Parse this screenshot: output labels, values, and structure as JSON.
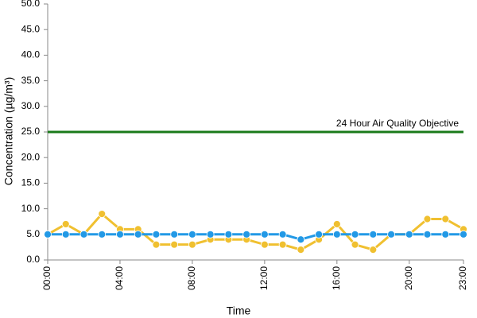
{
  "chart_data": {
    "type": "line",
    "xlabel": "Time",
    "ylabel": "Concentration (µg/m³)",
    "categories": [
      "00:00",
      null,
      null,
      null,
      "04:00",
      null,
      null,
      null,
      "08:00",
      null,
      null,
      null,
      "12:00",
      null,
      null,
      null,
      "16:00",
      null,
      null,
      null,
      "20:00",
      null,
      null,
      "23:00"
    ],
    "series": [
      {
        "color": "#f0c030",
        "values": [
          5,
          7,
          5,
          9,
          6,
          6,
          3,
          3,
          3,
          4,
          4,
          4,
          3,
          3,
          2,
          4,
          7,
          3,
          2,
          5,
          5,
          8,
          8,
          6
        ]
      },
      {
        "color": "#2299e6",
        "values": [
          5,
          5,
          5,
          5,
          5,
          5,
          5,
          5,
          5,
          5,
          5,
          5,
          5,
          5,
          4,
          5,
          5,
          5,
          5,
          5,
          5,
          5,
          5,
          5
        ]
      }
    ],
    "threshold": {
      "value": 25,
      "label": "24 Hour Air Quality Objective",
      "color": "#1a7a1a"
    },
    "ylim": [
      0,
      50
    ],
    "yticks": [
      {
        "value": 0,
        "label": "0.0"
      },
      {
        "value": 5,
        "label": "5.0"
      },
      {
        "value": 10,
        "label": "10.0"
      },
      {
        "value": 15,
        "label": "15.0"
      },
      {
        "value": 20,
        "label": "20.0"
      },
      {
        "value": 25,
        "label": "25.0"
      },
      {
        "value": 30,
        "label": "30.0"
      },
      {
        "value": 35,
        "label": "35.0"
      },
      {
        "value": 40,
        "label": "40.0"
      },
      {
        "value": 45,
        "label": "45.0"
      },
      {
        "value": 50,
        "label": "50.0"
      }
    ],
    "grid": false
  }
}
